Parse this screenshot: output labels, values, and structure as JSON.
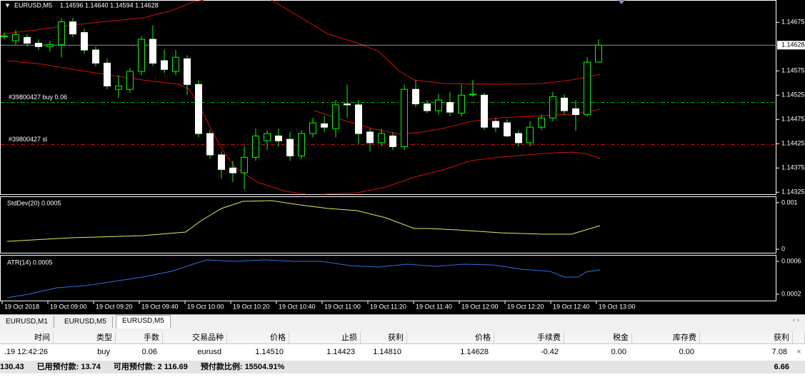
{
  "chart": {
    "title": "EURUSD,M5",
    "ohlc": "1.14596 1.14640 1.14594 1.14628",
    "ylim": [
      1.14321,
      1.14721
    ],
    "yticks": [
      1.14675,
      1.14575,
      1.14525,
      1.14475,
      1.14425,
      1.14375,
      1.14325
    ],
    "current_price": 1.14628,
    "orders": [
      {
        "label": "#39800427 buy 0.06",
        "price": 1.1451,
        "color": "#00c000"
      },
      {
        "label": "#39800427 sl",
        "price": 1.14423,
        "color": "#e01010"
      }
    ],
    "candles": [
      [
        1.14647,
        1.14654,
        1.1464,
        1.14647
      ],
      [
        1.14637,
        1.14659,
        1.14629,
        1.1465
      ],
      [
        1.14644,
        1.14651,
        1.14625,
        1.14632
      ],
      [
        1.14632,
        1.1464,
        1.14618,
        1.14625
      ],
      [
        1.14625,
        1.14637,
        1.14615,
        1.14629
      ],
      [
        1.14629,
        1.14684,
        1.14603,
        1.14676
      ],
      [
        1.14676,
        1.14684,
        1.14644,
        1.14651
      ],
      [
        1.14654,
        1.14662,
        1.1461,
        1.14618
      ],
      [
        1.14618,
        1.14625,
        1.14584,
        1.14591
      ],
      [
        1.14591,
        1.146,
        1.14537,
        1.14544
      ],
      [
        1.14537,
        1.14566,
        1.14519,
        1.14544
      ],
      [
        1.14537,
        1.14581,
        1.1453,
        1.14574
      ],
      [
        1.14574,
        1.14647,
        1.14566,
        1.1464
      ],
      [
        1.1464,
        1.14669,
        1.14585,
        1.14591
      ],
      [
        1.14596,
        1.14618,
        1.14571,
        1.14578
      ],
      [
        1.14574,
        1.14618,
        1.14566,
        1.14603
      ],
      [
        1.146,
        1.14607,
        1.14525,
        1.14547
      ],
      [
        1.14547,
        1.14556,
        1.14438,
        1.14446
      ],
      [
        1.14446,
        1.14453,
        1.14394,
        1.14402
      ],
      [
        1.14402,
        1.14409,
        1.14353,
        1.14372
      ],
      [
        1.14375,
        1.1439,
        1.14346,
        1.14365
      ],
      [
        1.14365,
        1.14419,
        1.14331,
        1.14397
      ],
      [
        1.14397,
        1.14456,
        1.1439,
        1.14441
      ],
      [
        1.14431,
        1.14453,
        1.14412,
        1.14446
      ],
      [
        1.14441,
        1.14456,
        1.14419,
        1.14431
      ],
      [
        1.14434,
        1.14449,
        1.1439,
        1.144
      ],
      [
        1.144,
        1.14453,
        1.14394,
        1.14446
      ],
      [
        1.14446,
        1.14478,
        1.14438,
        1.14468
      ],
      [
        1.14466,
        1.14482,
        1.14449,
        1.14459
      ],
      [
        1.14456,
        1.14515,
        1.14438,
        1.14505
      ],
      [
        1.14507,
        1.14547,
        1.14478,
        1.14505
      ],
      [
        1.14505,
        1.14515,
        1.14424,
        1.14446
      ],
      [
        1.14449,
        1.14456,
        1.14409,
        1.14427
      ],
      [
        1.14427,
        1.14456,
        1.14419,
        1.14446
      ],
      [
        1.14441,
        1.14449,
        1.14412,
        1.14419
      ],
      [
        1.14419,
        1.14547,
        1.14412,
        1.14537
      ],
      [
        1.14537,
        1.14556,
        1.145,
        1.14507
      ],
      [
        1.14507,
        1.14515,
        1.14488,
        1.14493
      ],
      [
        1.14493,
        1.14527,
        1.14485,
        1.14515
      ],
      [
        1.1451,
        1.14532,
        1.14482,
        1.1449
      ],
      [
        1.14488,
        1.14547,
        1.14481,
        1.14525
      ],
      [
        1.14527,
        1.14556,
        1.14522,
        1.14527
      ],
      [
        1.14525,
        1.1453,
        1.14453,
        1.14459
      ],
      [
        1.14471,
        1.14478,
        1.14449,
        1.14459
      ],
      [
        1.14468,
        1.14475,
        1.14438,
        1.14441
      ],
      [
        1.14446,
        1.14452,
        1.14419,
        1.14427
      ],
      [
        1.14427,
        1.14471,
        1.14419,
        1.14459
      ],
      [
        1.14459,
        1.14485,
        1.14453,
        1.14478
      ],
      [
        1.14478,
        1.14532,
        1.14471,
        1.14522
      ],
      [
        1.14519,
        1.14527,
        1.14485,
        1.14493
      ],
      [
        1.14497,
        1.14515,
        1.14452,
        1.14485
      ],
      [
        1.14485,
        1.14603,
        1.14481,
        1.14593
      ],
      [
        1.14593,
        1.1464,
        1.14593,
        1.14628
      ]
    ]
  },
  "stddev": {
    "label": "StdDev(20) 0.0005",
    "ylim": [
      -7.6e-05,
      0.001121
    ],
    "yticks": [
      0.001,
      0
    ]
  },
  "atr": {
    "label": "ATR(14) 0.0005",
    "ylim": [
      0.000122,
      0.00067
    ],
    "yticks": [
      0.0006,
      0.0002
    ]
  },
  "time_axis": [
    "19 Oct 2018",
    "19 Oct 09:00",
    "19 Oct 09:20",
    "19 Oct 09:40",
    "19 Oct 10:00",
    "19 Oct 10:20",
    "19 Oct 10:40",
    "19 Oct 11:00",
    "19 Oct 11:20",
    "19 Oct 11:40",
    "19 Oct 12:00",
    "19 Oct 12:20",
    "19 Oct 12:40",
    "19 Oct 13:00"
  ],
  "tabs": [
    "EURUSD,M1",
    "EURUSD,M5",
    "EURUSD,M5"
  ],
  "table": {
    "headers": [
      "时间",
      "类型",
      "手数",
      "交易品种",
      "价格",
      "止损",
      "获利",
      "价格",
      "手续费",
      "税金",
      "库存费",
      "获利"
    ],
    "rows": [
      [
        ".19 12:42:26",
        "buy",
        "0.06",
        "eurusd",
        "1.14510",
        "1.14423",
        "1.14810",
        "1.14628",
        "-0.42",
        "0.00",
        "0.00",
        "7.08"
      ]
    ]
  },
  "summary": {
    "items": [
      "130.43",
      "已用预付款: 13.74",
      "可用预付款: 2 116.69",
      "预付款比例: 15504.91%"
    ],
    "right": "6.66"
  }
}
